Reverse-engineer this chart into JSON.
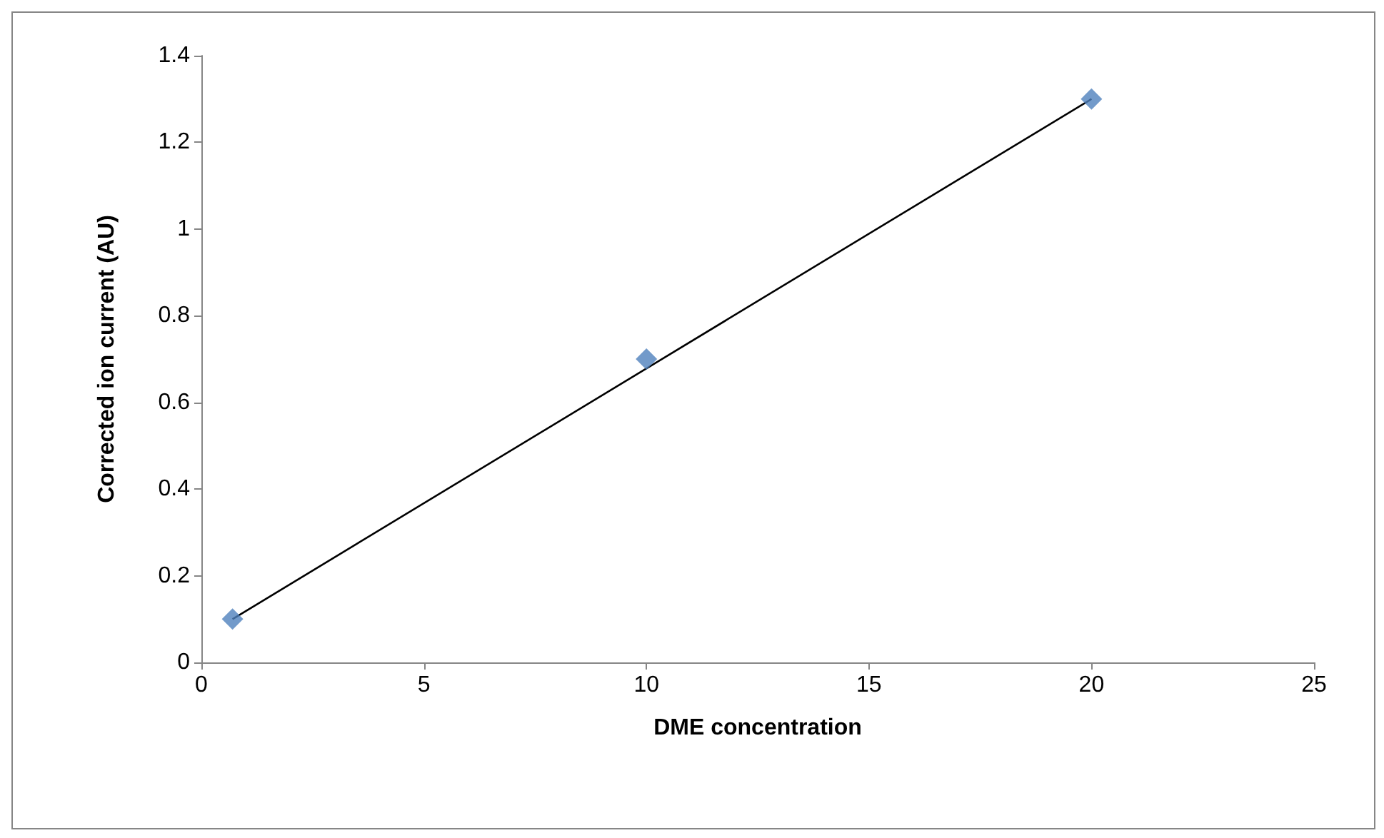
{
  "chart_data": {
    "type": "scatter",
    "xlabel": "DME concentration",
    "ylabel": "Corrected ion current (AU)",
    "xlim": [
      0,
      25
    ],
    "xticks": [
      0,
      5,
      10,
      15,
      20,
      25
    ],
    "ylim": [
      0,
      1.4
    ],
    "yticks": [
      0,
      0.2,
      0.4,
      0.6,
      0.8,
      1,
      1.2,
      1.4
    ],
    "grid": false,
    "marker": "diamond",
    "series": [
      {
        "color": "#4f81bd",
        "x": [
          0.7,
          10,
          20
        ],
        "values": [
          0.1,
          0.7,
          1.3
        ]
      },
      {
        "type": "line",
        "color": "#000000",
        "marker": "none",
        "line_style": "solid",
        "x": [
          0.7,
          20
        ],
        "values": [
          0.1,
          1.3
        ]
      }
    ]
  }
}
